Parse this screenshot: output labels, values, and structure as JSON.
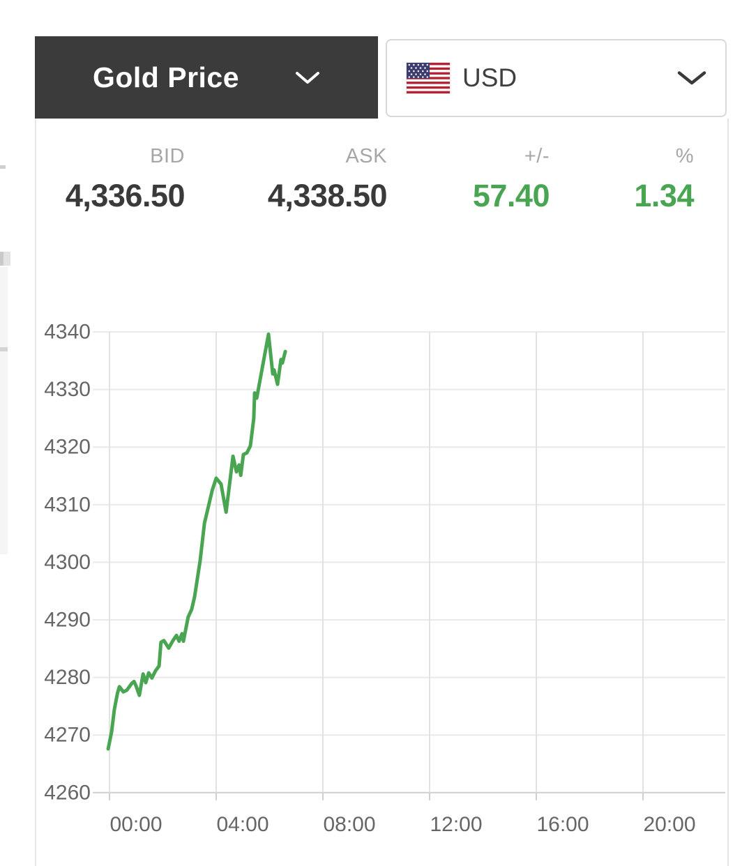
{
  "header": {
    "instrument_label": "Gold Price",
    "currency_code": "USD"
  },
  "quote": {
    "columns": [
      {
        "label": "BID",
        "value": "4,336.50",
        "tone": "dark"
      },
      {
        "label": "ASK",
        "value": "4,338.50",
        "tone": "dark"
      },
      {
        "label": "+/-",
        "value": "57.40",
        "tone": "green"
      },
      {
        "label": "%",
        "value": "1.34",
        "tone": "green"
      }
    ]
  },
  "colors": {
    "green": "#4aa552",
    "header_bg": "#3b3b3b",
    "box_border": "#d8d8d8",
    "label_gray": "#a6a6a6",
    "value_dark": "#3a3a3a"
  },
  "chart_data": {
    "type": "line",
    "title": "",
    "xlabel": "",
    "ylabel": "",
    "x_unit": "hours (24h intraday)",
    "x_ticks": [
      "00:00",
      "04:00",
      "08:00",
      "12:00",
      "16:00",
      "20:00"
    ],
    "x_tick_hours": [
      0,
      4,
      8,
      12,
      16,
      20
    ],
    "xlim": [
      -0.6,
      23.1
    ],
    "y_ticks": [
      4340,
      4330,
      4320,
      4310,
      4300,
      4290,
      4280,
      4270,
      4260
    ],
    "ylim": [
      4260,
      4340
    ],
    "grid": true,
    "legend": "none",
    "line_color": "#4aa552",
    "grid_color_h": "#e9e9e9",
    "grid_color_v": "#e2e2e2",
    "axis_color": "#cfcfcf",
    "tick_text_color": "#666666",
    "series": [
      {
        "name": "Gold Price USD",
        "points": [
          [
            -0.05,
            4267.6
          ],
          [
            0.08,
            4270.6
          ],
          [
            0.18,
            4274.4
          ],
          [
            0.3,
            4277.3
          ],
          [
            0.37,
            4278.4
          ],
          [
            0.52,
            4277.5
          ],
          [
            0.65,
            4277.8
          ],
          [
            0.84,
            4279.0
          ],
          [
            0.92,
            4279.3
          ],
          [
            0.99,
            4278.6
          ],
          [
            1.12,
            4276.9
          ],
          [
            1.26,
            4280.6
          ],
          [
            1.36,
            4279.1
          ],
          [
            1.47,
            4280.8
          ],
          [
            1.59,
            4279.9
          ],
          [
            1.73,
            4281.2
          ],
          [
            1.86,
            4282.0
          ],
          [
            1.93,
            4286.1
          ],
          [
            2.04,
            4286.4
          ],
          [
            2.22,
            4285.1
          ],
          [
            2.38,
            4286.4
          ],
          [
            2.51,
            4287.3
          ],
          [
            2.61,
            4286.3
          ],
          [
            2.72,
            4287.6
          ],
          [
            2.77,
            4286.3
          ],
          [
            2.95,
            4290.5
          ],
          [
            3.08,
            4291.8
          ],
          [
            3.19,
            4294.0
          ],
          [
            3.4,
            4300.3
          ],
          [
            3.56,
            4306.8
          ],
          [
            3.7,
            4309.5
          ],
          [
            3.85,
            4312.5
          ],
          [
            4.0,
            4314.6
          ],
          [
            4.18,
            4313.6
          ],
          [
            4.37,
            4308.7
          ],
          [
            4.63,
            4318.4
          ],
          [
            4.76,
            4315.7
          ],
          [
            4.86,
            4316.9
          ],
          [
            4.92,
            4315.1
          ],
          [
            5.02,
            4318.7
          ],
          [
            5.15,
            4319.0
          ],
          [
            5.28,
            4320.2
          ],
          [
            5.41,
            4325.0
          ],
          [
            5.44,
            4329.4
          ],
          [
            5.52,
            4328.5
          ],
          [
            5.96,
            4339.6
          ],
          [
            6.12,
            4332.7
          ],
          [
            6.17,
            4333.4
          ],
          [
            6.3,
            4330.9
          ],
          [
            6.43,
            4335.2
          ],
          [
            6.48,
            4334.6
          ],
          [
            6.59,
            4336.6
          ]
        ]
      }
    ]
  }
}
